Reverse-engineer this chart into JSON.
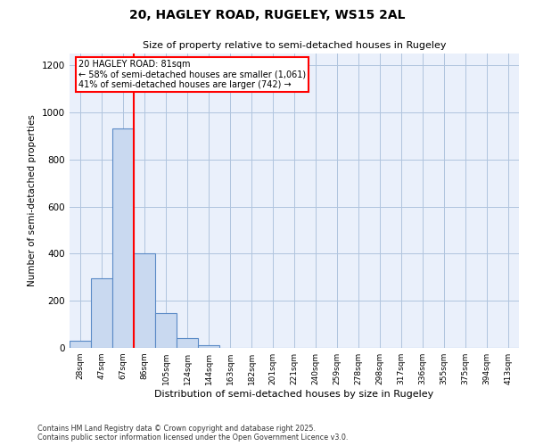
{
  "title1": "20, HAGLEY ROAD, RUGELEY, WS15 2AL",
  "title2": "Size of property relative to semi-detached houses in Rugeley",
  "xlabel": "Distribution of semi-detached houses by size in Rugeley",
  "ylabel": "Number of semi-detached properties",
  "bin_labels": [
    "28sqm",
    "47sqm",
    "67sqm",
    "86sqm",
    "105sqm",
    "124sqm",
    "144sqm",
    "163sqm",
    "182sqm",
    "201sqm",
    "221sqm",
    "240sqm",
    "259sqm",
    "278sqm",
    "298sqm",
    "317sqm",
    "336sqm",
    "355sqm",
    "375sqm",
    "394sqm",
    "413sqm"
  ],
  "bar_values": [
    30,
    295,
    930,
    400,
    148,
    40,
    10,
    0,
    0,
    0,
    0,
    0,
    0,
    0,
    0,
    0,
    0,
    0,
    0,
    0,
    0
  ],
  "bar_color": "#c9d9f0",
  "bar_edge_color": "#5a8ac6",
  "property_line_bin": 3,
  "property_sqm": 81,
  "property_label": "20 HAGLEY ROAD: 81sqm",
  "annotation_smaller": "← 58% of semi-detached houses are smaller (1,061)",
  "annotation_larger": "41% of semi-detached houses are larger (742) →",
  "vline_color": "red",
  "ylim": [
    0,
    1250
  ],
  "yticks": [
    0,
    200,
    400,
    600,
    800,
    1000,
    1200
  ],
  "grid_color": "#b0c4de",
  "bg_color": "#eaf0fb",
  "footer1": "Contains HM Land Registry data © Crown copyright and database right 2025.",
  "footer2": "Contains public sector information licensed under the Open Government Licence v3.0."
}
